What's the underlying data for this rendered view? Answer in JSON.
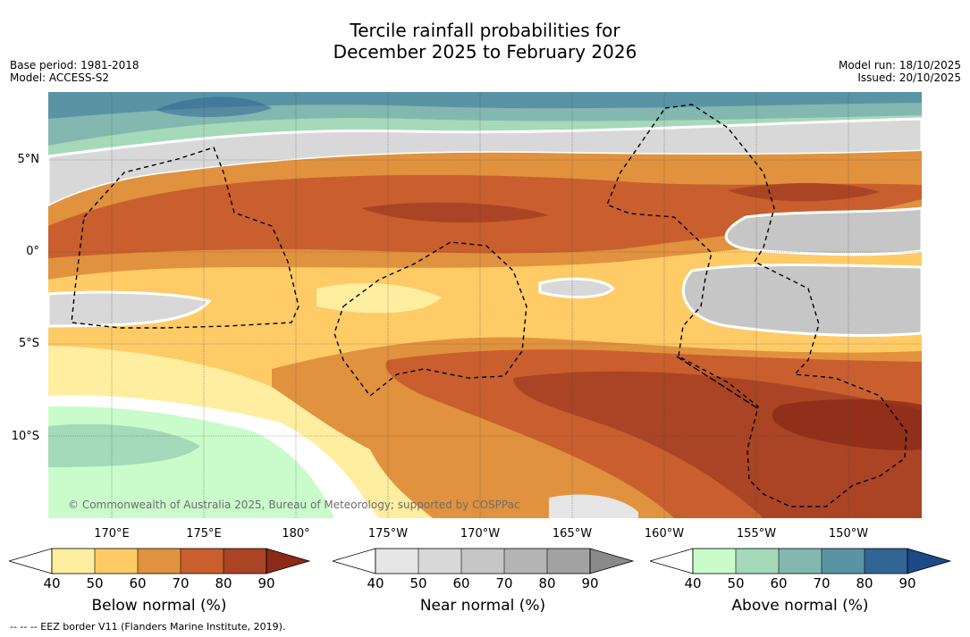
{
  "title_line1": "Tercile rainfall probabilities for",
  "title_line2": "December 2025 to February 2026",
  "meta_left": {
    "base_period": "Base period: 1981-2018",
    "model": "Model: ACCESS-S2"
  },
  "meta_right": {
    "model_run": "Model run: 18/10/2025",
    "issued": "Issued: 20/10/2025"
  },
  "latitude_labels": [
    "5°N",
    "0°",
    "5°S",
    "10°S"
  ],
  "longitude_labels": [
    "170°E",
    "175°E",
    "180°",
    "175°W",
    "170°W",
    "165°W",
    "160°W",
    "155°W",
    "150°W"
  ],
  "copyright": "© Commonwealth of Australia 2025, Bureau of Meteorology; supported by COSPPac",
  "footnote": "--  --  -- EEZ border V11 (Flanders Marine Institute, 2019).",
  "colorbars": [
    {
      "title": "Below normal (%)",
      "ticks": [
        "40",
        "50",
        "60",
        "70",
        "80",
        "90"
      ],
      "colors": [
        "#ffeea0",
        "#fecb66",
        "#e0923e",
        "#c95f2e",
        "#aa4424",
        "#8c2a18"
      ]
    },
    {
      "title": "Near normal (%)",
      "ticks": [
        "40",
        "50",
        "60",
        "70",
        "80",
        "90"
      ],
      "colors": [
        "#e6e6e6",
        "#d8d8d8",
        "#c6c6c6",
        "#b4b4b4",
        "#a2a2a2",
        "#8a8a8a"
      ]
    },
    {
      "title": "Above normal (%)",
      "ticks": [
        "40",
        "50",
        "60",
        "70",
        "80",
        "90"
      ],
      "colors": [
        "#c9fcca",
        "#a4d9b9",
        "#82b8b0",
        "#5a93a4",
        "#316594",
        "#1d4a87"
      ]
    }
  ]
}
